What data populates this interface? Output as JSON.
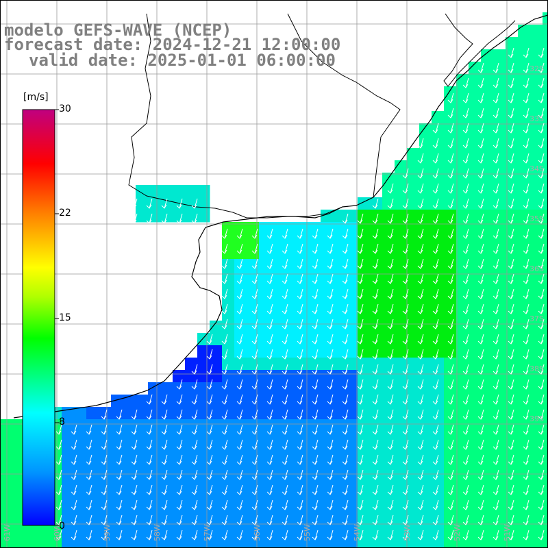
{
  "title": {
    "line1": "modelo GEFS-WAVE (NCEP)",
    "line2": "forecast date: 2024-12-21 12:00:00",
    "line3": "valid date: 2025-01-01 06:00:00"
  },
  "colorbar": {
    "unit": "[m/s]",
    "ticks": [
      "30",
      "22",
      "15",
      "8",
      "0"
    ],
    "range": [
      0,
      30
    ],
    "colors": [
      "#0000ff",
      "#0096ff",
      "#00ffff",
      "#00ff00",
      "#ffff00",
      "#ff8000",
      "#ff0000",
      "#c00080"
    ]
  },
  "lat_labels": [
    "32S",
    "33S",
    "34S",
    "35S",
    "36S",
    "37S",
    "38S",
    "39S"
  ],
  "lon_labels": [
    "61W",
    "60W",
    "59W",
    "58W",
    "57W",
    "56W",
    "55W",
    "54W",
    "53W",
    "52W",
    "51W"
  ],
  "wind_direction": "from north-northeast (arrows pointing south-southwest)",
  "colors": {
    "coastline": "#000000",
    "grid": "#999999",
    "title": "#808080",
    "arrow": "#ffffff"
  }
}
